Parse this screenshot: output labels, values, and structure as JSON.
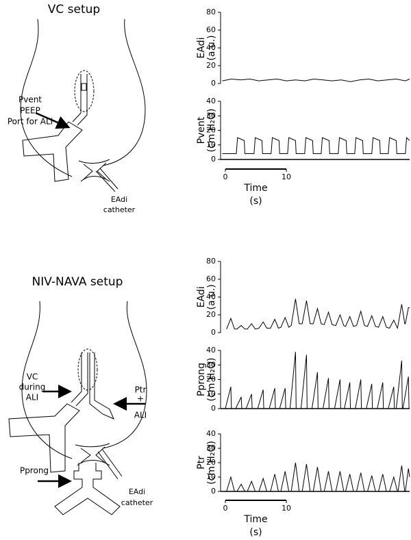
{
  "diagrams": [
    {
      "title": "VC setup",
      "labels": [
        "Pvent",
        "PEEP",
        "Port for ALI",
        "EAdi",
        "catheter"
      ]
    },
    {
      "title": "NIV-NAVA setup",
      "labels": [
        "VC",
        "during",
        "ALI",
        "Ptr",
        "+",
        "ALI",
        "Pprong",
        "EAdi",
        "catheter"
      ]
    }
  ],
  "chart_data": [
    {
      "type": "line",
      "ylabel": [
        "EAdi",
        "(a.u.)"
      ],
      "xlim": [
        -0.5,
        30.2
      ],
      "ylim": [
        0,
        80
      ],
      "yticks": [
        0,
        20,
        40,
        60,
        80
      ],
      "zero_line": false,
      "series": [
        {
          "color": "#000000",
          "x": [
            -0.5,
            1,
            2.5,
            4,
            5.5,
            7,
            8.5,
            10,
            11.5,
            13,
            14.5,
            16,
            17.5,
            19,
            20.5,
            22,
            23.5,
            25,
            26.5,
            28,
            29.5,
            30.2
          ],
          "values": [
            3,
            5,
            4,
            5,
            3,
            4,
            5,
            3,
            4,
            3,
            5,
            4,
            3,
            4,
            2,
            4,
            5,
            3,
            4,
            5,
            3,
            5
          ]
        }
      ]
    },
    {
      "type": "line",
      "ylabel": [
        "Pvent",
        "(cm H₂O)"
      ],
      "xlim": [
        -0.5,
        30.2
      ],
      "ylim": [
        0,
        40
      ],
      "yticks": [
        0,
        10,
        20,
        30,
        40
      ],
      "zero_line": true,
      "xticks": [
        0,
        10
      ],
      "xlabel": [
        "Time",
        "(s)"
      ],
      "series": [
        {
          "color": "#000000",
          "x": [
            -0.5,
            1.8,
            2.0,
            3.1,
            3.2,
            4.7,
            4.9,
            6.0,
            6.1,
            7.5,
            7.7,
            8.8,
            8.9,
            10.2,
            10.4,
            11.5,
            11.6,
            13.0,
            13.2,
            14.3,
            14.4,
            15.7,
            15.9,
            17.0,
            17.1,
            18.5,
            18.7,
            19.8,
            19.9,
            21.2,
            21.4,
            22.5,
            22.6,
            24.0,
            24.2,
            25.3,
            25.4,
            26.7,
            26.9,
            28.0,
            28.1,
            29.5,
            29.7,
            30.2
          ],
          "values": [
            4,
            4,
            15,
            13,
            4,
            4,
            15,
            13,
            4,
            4,
            15,
            13,
            4,
            4,
            15,
            13,
            4,
            4,
            15,
            13,
            4,
            4,
            15,
            13,
            4,
            4,
            15,
            13,
            4,
            4,
            15,
            13,
            4,
            4,
            15,
            13,
            4,
            4,
            15,
            13,
            4,
            4,
            15,
            13
          ]
        }
      ]
    },
    {
      "type": "line",
      "ylabel": [
        "EAdi",
        "(a.u.)"
      ],
      "xlim": [
        -0.5,
        30.2
      ],
      "ylim": [
        0,
        80
      ],
      "yticks": [
        0,
        20,
        40,
        60,
        80
      ],
      "zero_line": false,
      "series": [
        {
          "color": "#000000",
          "x": [
            0.2,
            0.9,
            1.5,
            1.9,
            2.6,
            3.2,
            3.6,
            4.3,
            4.9,
            5.5,
            6.2,
            6.8,
            7.4,
            8.1,
            8.7,
            9.1,
            9.8,
            10.4,
            10.8,
            11.5,
            12.1,
            12.6,
            13.3,
            13.9,
            14.4,
            15.1,
            15.7,
            16.2,
            16.9,
            17.5,
            18.1,
            18.8,
            19.4,
            19.7,
            20.4,
            21.0,
            21.5,
            22.2,
            22.8,
            23.3,
            24.0,
            24.6,
            25.1,
            25.8,
            26.4,
            26.9,
            27.6,
            28.2,
            28.3,
            28.9,
            29.4,
            29.5,
            30.0,
            30.2
          ],
          "values": [
            4,
            16,
            4,
            4,
            8,
            4,
            4,
            10,
            4,
            5,
            12,
            5,
            5,
            15,
            5,
            6,
            17,
            6,
            8,
            38,
            10,
            10,
            36,
            10,
            10,
            27,
            10,
            9,
            23,
            9,
            8,
            20,
            8,
            7,
            18,
            7,
            8,
            24,
            8,
            7,
            19,
            7,
            6,
            18,
            6,
            5,
            14,
            5,
            8,
            32,
            10,
            10,
            28,
            28
          ]
        }
      ]
    },
    {
      "type": "line",
      "ylabel": [
        "Pprong",
        "(cm H₂O)"
      ],
      "xlim": [
        -0.5,
        30.2
      ],
      "ylim": [
        0,
        40
      ],
      "yticks": [
        0,
        10,
        20,
        30,
        40
      ],
      "zero_line": true,
      "series": [
        {
          "color": "#000000",
          "x": [
            0.0,
            0.9,
            1.0,
            1.7,
            2.6,
            2.7,
            3.4,
            4.3,
            4.4,
            5.3,
            6.2,
            6.3,
            7.2,
            8.1,
            8.2,
            8.9,
            9.8,
            9.9,
            10.6,
            11.5,
            11.6,
            12.4,
            13.3,
            13.4,
            14.2,
            15.1,
            15.2,
            16.0,
            16.9,
            17.0,
            17.9,
            18.8,
            18.9,
            19.5,
            20.4,
            20.5,
            21.3,
            22.2,
            22.3,
            23.1,
            24.0,
            24.1,
            24.9,
            25.8,
            25.9,
            26.7,
            27.6,
            27.7,
            28.0,
            28.9,
            29.0,
            29.1,
            30.0,
            30.1
          ],
          "values": [
            0,
            15,
            0,
            0,
            8,
            0,
            0,
            10,
            0,
            0,
            13,
            0,
            0,
            14,
            0,
            0,
            14,
            0,
            0,
            39,
            0,
            0,
            37,
            0,
            0,
            25,
            0,
            0,
            21,
            0,
            0,
            20,
            0,
            0,
            18,
            0,
            0,
            20,
            0,
            0,
            17,
            0,
            0,
            18,
            0,
            0,
            15,
            0,
            0,
            33,
            0,
            0,
            22,
            0
          ]
        }
      ]
    },
    {
      "type": "line",
      "ylabel": [
        "Ptr",
        "(cm H₂O)"
      ],
      "xlim": [
        -0.5,
        30.2
      ],
      "ylim": [
        0,
        40
      ],
      "yticks": [
        0,
        10,
        20,
        30,
        40
      ],
      "zero_line": true,
      "xticks": [
        0,
        10
      ],
      "xlabel": [
        "Time",
        "(s)"
      ],
      "series": [
        {
          "color": "#000000",
          "x": [
            0.2,
            0.9,
            1.5,
            1.9,
            2.6,
            3.2,
            3.6,
            4.3,
            4.9,
            5.5,
            6.2,
            6.8,
            7.4,
            8.1,
            8.7,
            9.1,
            9.8,
            10.4,
            10.8,
            11.5,
            12.1,
            12.6,
            13.3,
            13.9,
            14.4,
            15.1,
            15.7,
            16.2,
            16.9,
            17.5,
            18.1,
            18.8,
            19.4,
            19.7,
            20.4,
            21.0,
            21.5,
            22.2,
            22.8,
            23.3,
            24.0,
            24.6,
            25.1,
            25.8,
            26.4,
            26.9,
            27.6,
            28.2,
            28.3,
            28.9,
            29.4,
            29.5,
            30.0,
            30.2
          ],
          "values": [
            0,
            10,
            0,
            0,
            5,
            0,
            0,
            7,
            0,
            0,
            9,
            0,
            0,
            12,
            0,
            0,
            14,
            0,
            0,
            20,
            0,
            0,
            19,
            0,
            0,
            17,
            0,
            0,
            14,
            0,
            0,
            14,
            0,
            0,
            12,
            0,
            0,
            13,
            0,
            0,
            11,
            0,
            0,
            12,
            0,
            0,
            10,
            0,
            0,
            18,
            0,
            0,
            16,
            10
          ]
        }
      ]
    }
  ]
}
